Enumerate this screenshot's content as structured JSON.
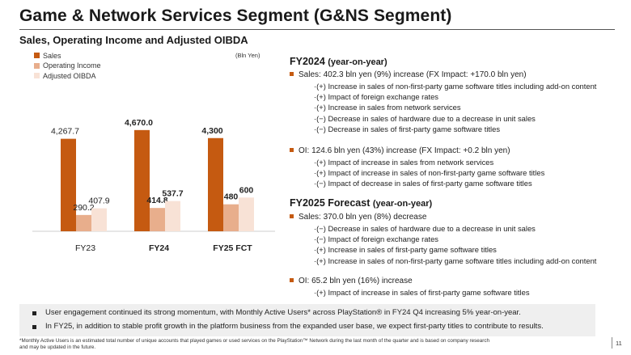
{
  "title": "Game & Network Services Segment (G&NS Segment)",
  "subtitle": "Sales, Operating Income and Adjusted OIBDA",
  "unit_label": "(Bln Yen)",
  "colors": {
    "sales": "#c55a11",
    "oi": "#e8ae8c",
    "oibda": "#f8e2d6",
    "bullet": "#c55a11"
  },
  "chart_data": {
    "type": "bar",
    "categories": [
      "FY23",
      "FY24",
      "FY25 FCT"
    ],
    "category_bold": [
      false,
      true,
      true
    ],
    "series": [
      {
        "name": "Sales",
        "values": [
          4267.7,
          4670.0,
          4300
        ],
        "labels": [
          "4,267.7",
          "4,670.0",
          "4,300"
        ],
        "bold": [
          false,
          true,
          true
        ]
      },
      {
        "name": "Operating Income",
        "values": [
          290.2,
          414.8,
          480
        ],
        "labels": [
          "290.2",
          "414.8",
          "480"
        ],
        "bold": [
          false,
          true,
          true
        ]
      },
      {
        "name": "Adjusted OIBDA",
        "values": [
          407.9,
          537.7,
          600
        ],
        "labels": [
          "407.9",
          "537.7",
          "600"
        ],
        "bold": [
          false,
          true,
          true
        ]
      }
    ],
    "scale": "broken axis (sales bars and income bars on different scales)",
    "legend_position": "top-left",
    "grid": false
  },
  "fy2024": {
    "heading": "FY2024",
    "heading_paren": "(year-on-year)",
    "sales_line": "Sales: 402.3 bln yen (9%) increase (FX Impact: +170.0 bln yen)",
    "sales_items": [
      "·(+) Increase in sales of non-first-party game software titles including add-on content",
      "·(+) Impact of foreign exchange rates",
      "·(+) Increase in sales from network services",
      "·(−) Decrease in sales of hardware due to a decrease in unit sales",
      "·(−) Decrease in sales of first-party game software titles"
    ],
    "oi_line": "OI: 124.6 bln yen (43%) increase (FX Impact: +0.2 bln yen)",
    "oi_items": [
      "·(+) Impact of increase in sales from network services",
      "·(+) Impact of increase in sales of non-first-party game software titles",
      "·(−) Impact of decrease in sales of first-party game software titles"
    ]
  },
  "fy2025": {
    "heading": "FY2025 Forecast",
    "heading_paren": "(year-on-year)",
    "sales_line": "Sales: 370.0 bln yen (8%) decrease",
    "sales_items": [
      "·(−) Decrease in sales of hardware due to a decrease in unit sales",
      "·(−) Impact of foreign exchange rates",
      "·(+) Increase in sales of first-party game software titles",
      "·(+) Increase in sales of non-first-party game software titles including add-on content"
    ],
    "oi_line": "OI: 65.2 bln yen  (16%) increase",
    "oi_items": [
      "·(+) Impact of increase in sales of first-party game software titles"
    ]
  },
  "notes": [
    "User engagement continued its strong momentum, with Monthly Active Users* across PlayStation® in FY24 Q4 increasing 5% year-on-year.",
    "In FY25, in addition to stable profit growth in the platform business from the expanded user base, we expect first-party titles to contribute to results."
  ],
  "footnote_1": "*Monthly Active Users is an estimated total number of unique accounts that played games or used services on the PlayStation™ Network during the last month of the quarter and is based on company research",
  "footnote_2": "and may be updated in the future.",
  "page_number": "11"
}
